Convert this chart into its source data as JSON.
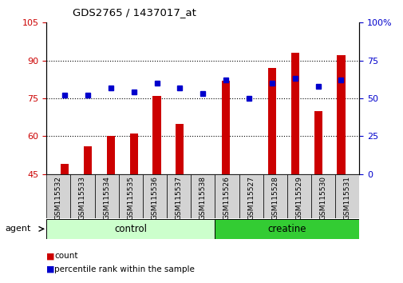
{
  "title": "GDS2765 / 1437017_at",
  "samples": [
    "GSM115532",
    "GSM115533",
    "GSM115534",
    "GSM115535",
    "GSM115536",
    "GSM115537",
    "GSM115538",
    "GSM115526",
    "GSM115527",
    "GSM115528",
    "GSM115529",
    "GSM115530",
    "GSM115531"
  ],
  "counts": [
    49,
    56,
    60,
    61,
    76,
    65,
    45,
    82,
    45,
    87,
    93,
    70,
    92
  ],
  "percentiles": [
    52,
    52,
    57,
    54,
    60,
    57,
    53,
    62,
    50,
    60,
    63,
    58,
    62
  ],
  "bar_color": "#cc0000",
  "dot_color": "#0000cc",
  "ylim_left": [
    45,
    105
  ],
  "ylim_right": [
    0,
    100
  ],
  "yticks_left": [
    45,
    60,
    75,
    90,
    105
  ],
  "yticks_right": [
    0,
    25,
    50,
    75,
    100
  ],
  "groups": [
    {
      "label": "control",
      "indices": [
        0,
        1,
        2,
        3,
        4,
        5,
        6
      ],
      "color": "#ccffcc"
    },
    {
      "label": "creatine",
      "indices": [
        7,
        8,
        9,
        10,
        11,
        12
      ],
      "color": "#33cc33"
    }
  ],
  "agent_label": "agent",
  "legend_items": [
    {
      "label": "count",
      "color": "#cc0000"
    },
    {
      "label": "percentile rank within the sample",
      "color": "#0000cc"
    }
  ],
  "background_color": "#ffffff",
  "left_tick_color": "#cc0000",
  "right_tick_color": "#0000cc",
  "bar_width": 0.35,
  "grid_yticks": [
    60,
    75,
    90
  ]
}
